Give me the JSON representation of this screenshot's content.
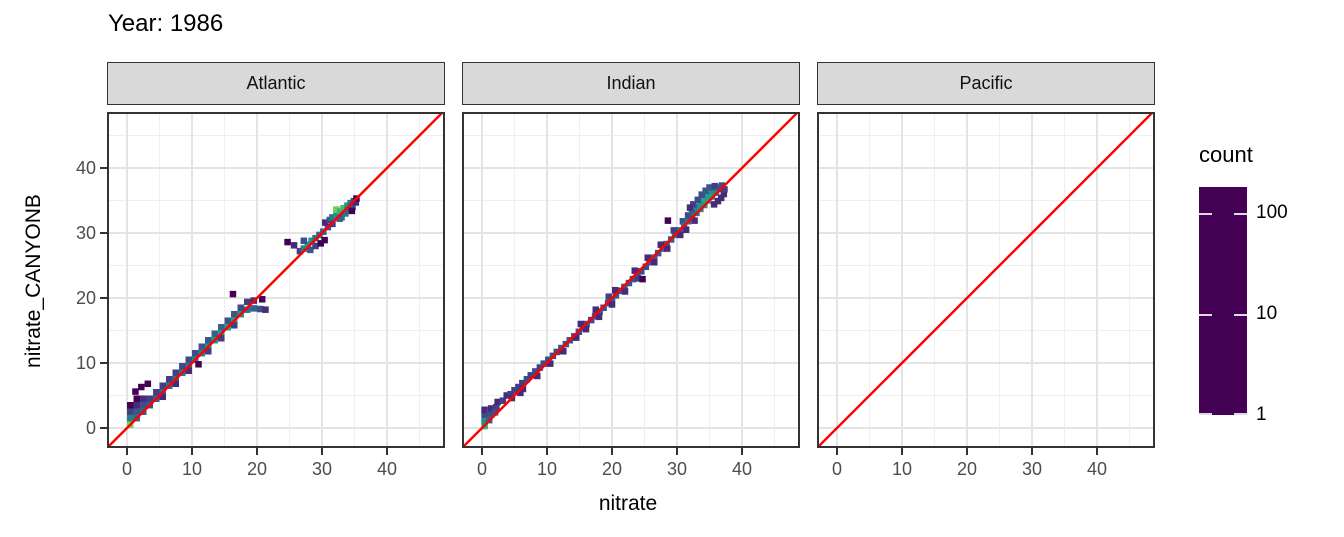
{
  "title": "Year: 1986",
  "axes": {
    "x_label": "nitrate",
    "y_label": "nitrate_CANYONB",
    "major_ticks": [
      0,
      10,
      20,
      30,
      40
    ],
    "minor_ticks": [
      5,
      15,
      25,
      35,
      45
    ]
  },
  "legend": {
    "title": "count",
    "ticks": [
      100,
      10,
      1
    ],
    "scale": "log10",
    "domain": [
      1,
      180
    ]
  },
  "colors": {
    "reference_line": "#ff0000",
    "panel_border": "#333333",
    "strip_fill": "#d9d9d9",
    "grid_major": "#e4e4e4",
    "grid_minor": "#efefef",
    "axis_text": "#4d4d4d",
    "viridis_stops": [
      [
        0.0,
        "#440154"
      ],
      [
        0.125,
        "#482878"
      ],
      [
        0.25,
        "#3e4a89"
      ],
      [
        0.375,
        "#31688e"
      ],
      [
        0.5,
        "#26828e"
      ],
      [
        0.625,
        "#1f9e89"
      ],
      [
        0.75,
        "#35b779"
      ],
      [
        0.875,
        "#6ece58"
      ],
      [
        1.0,
        "#fde725"
      ]
    ]
  },
  "chart_data": {
    "type": "heatmap",
    "title": "Year: 1986",
    "xlabel": "nitrate",
    "ylabel": "nitrate_CANYONB",
    "xlim": [
      -3.08,
      48.92
    ],
    "ylim": [
      -3.08,
      48.62
    ],
    "bin_size": 1,
    "grid": true,
    "reference_line": "y = x",
    "color_scale": {
      "name": "viridis",
      "title": "count",
      "type": "log10",
      "domain": [
        1,
        180
      ],
      "legend_ticks": [
        100,
        10,
        1
      ]
    },
    "facets": [
      {
        "name": "Atlantic",
        "bins": [
          [
            0.5,
            0.5,
            100
          ],
          [
            0.5,
            1.5,
            12
          ],
          [
            1.5,
            1.5,
            8
          ],
          [
            0.5,
            2.5,
            3
          ],
          [
            1.5,
            2.5,
            5
          ],
          [
            2.5,
            2.5,
            6
          ],
          [
            1.5,
            3.5,
            2
          ],
          [
            2.5,
            3.5,
            4
          ],
          [
            0.5,
            3.5,
            1
          ],
          [
            1.5,
            4.5,
            1
          ],
          [
            2.5,
            4.5,
            2
          ],
          [
            3.5,
            3.5,
            5
          ],
          [
            3.5,
            4.5,
            3
          ],
          [
            2.2,
            6.3,
            1
          ],
          [
            3.2,
            6.8,
            1
          ],
          [
            1.3,
            5.6,
            1
          ],
          [
            4.5,
            4.5,
            6
          ],
          [
            4.5,
            5.5,
            3
          ],
          [
            5.5,
            5.5,
            7
          ],
          [
            5.5,
            6.5,
            3
          ],
          [
            6.5,
            6.5,
            8
          ],
          [
            6.5,
            7.5,
            3
          ],
          [
            7.5,
            7.5,
            8
          ],
          [
            7.5,
            8.5,
            3
          ],
          [
            8.5,
            8.5,
            9
          ],
          [
            8.5,
            9.5,
            4
          ],
          [
            9.5,
            9.5,
            10
          ],
          [
            9.5,
            10.5,
            4
          ],
          [
            10.5,
            10.5,
            12
          ],
          [
            10.5,
            11.5,
            4
          ],
          [
            5.5,
            4.8,
            2
          ],
          [
            7.5,
            6.8,
            2
          ],
          [
            9.5,
            8.8,
            2
          ],
          [
            11.0,
            9.8,
            1
          ],
          [
            11.5,
            11.5,
            14
          ],
          [
            11.5,
            12.5,
            5
          ],
          [
            12.5,
            12.5,
            18
          ],
          [
            12.5,
            13.5,
            5
          ],
          [
            13.5,
            13.5,
            24
          ],
          [
            13.5,
            14.5,
            6
          ],
          [
            14.5,
            14.5,
            28
          ],
          [
            14.5,
            15.5,
            6
          ],
          [
            15.5,
            15.5,
            30
          ],
          [
            15.5,
            16.5,
            5
          ],
          [
            16.5,
            16.5,
            28
          ],
          [
            16.5,
            17.5,
            5
          ],
          [
            17.5,
            17.5,
            22
          ],
          [
            12.5,
            11.8,
            3
          ],
          [
            14.5,
            13.8,
            3
          ],
          [
            16.5,
            15.8,
            3
          ],
          [
            17.5,
            18.5,
            4
          ],
          [
            18.5,
            18.2,
            10
          ],
          [
            19.5,
            18.4,
            6
          ],
          [
            20.5,
            18.3,
            4
          ],
          [
            21.3,
            18.2,
            2
          ],
          [
            18.5,
            19.4,
            3
          ],
          [
            19.5,
            19.6,
            2
          ],
          [
            16.3,
            20.6,
            1
          ],
          [
            20.8,
            19.8,
            1
          ],
          [
            24.7,
            28.6,
            1
          ],
          [
            25.7,
            28.1,
            2
          ],
          [
            26.6,
            27.2,
            3
          ],
          [
            27.2,
            27.6,
            12
          ],
          [
            27.8,
            28.2,
            22
          ],
          [
            28.4,
            28.8,
            18
          ],
          [
            27.2,
            28.8,
            4
          ],
          [
            28.2,
            27.4,
            5
          ],
          [
            29.0,
            29.2,
            10
          ],
          [
            29.6,
            29.7,
            8
          ],
          [
            29.0,
            28.0,
            3
          ],
          [
            29.8,
            28.4,
            1
          ],
          [
            30.4,
            28.9,
            1
          ],
          [
            30.2,
            30.2,
            6
          ],
          [
            30.9,
            30.9,
            5
          ],
          [
            30.5,
            31.6,
            2
          ],
          [
            31.2,
            32.0,
            4
          ],
          [
            31.6,
            31.4,
            3
          ],
          [
            31.6,
            32.4,
            10
          ],
          [
            32.2,
            32.8,
            18
          ],
          [
            32.2,
            33.6,
            95
          ],
          [
            32.8,
            33.3,
            45
          ],
          [
            33.3,
            33.8,
            55
          ],
          [
            33.9,
            34.2,
            25
          ],
          [
            34.4,
            34.6,
            10
          ],
          [
            34.9,
            34.9,
            4
          ],
          [
            33.0,
            32.4,
            8
          ],
          [
            33.6,
            33.0,
            10
          ],
          [
            34.1,
            33.5,
            7
          ],
          [
            34.7,
            34.0,
            5
          ],
          [
            32.7,
            32.2,
            6
          ],
          [
            35.2,
            34.7,
            2
          ],
          [
            34.6,
            33.4,
            1
          ],
          [
            35.3,
            35.3,
            1
          ]
        ]
      },
      {
        "name": "Indian",
        "bins": [
          [
            0.4,
            0.3,
            40
          ],
          [
            0.4,
            1.0,
            18
          ],
          [
            0.4,
            2.0,
            4
          ],
          [
            0.4,
            2.8,
            2
          ],
          [
            1.2,
            2.2,
            4
          ],
          [
            1.4,
            3.0,
            2
          ],
          [
            2.2,
            3.2,
            3
          ],
          [
            2.4,
            4.0,
            2
          ],
          [
            3.2,
            4.2,
            3
          ],
          [
            1.1,
            1.2,
            6
          ],
          [
            2.0,
            2.4,
            4
          ],
          [
            3.8,
            5.0,
            2
          ],
          [
            4.4,
            5.2,
            3
          ],
          [
            5.0,
            5.8,
            3
          ],
          [
            5.6,
            6.3,
            3
          ],
          [
            6.2,
            6.9,
            3
          ],
          [
            6.9,
            7.5,
            4
          ],
          [
            7.5,
            8.1,
            3
          ],
          [
            8.2,
            8.7,
            4
          ],
          [
            8.9,
            9.3,
            3
          ],
          [
            9.5,
            9.9,
            4
          ],
          [
            10.2,
            10.5,
            4
          ],
          [
            10.9,
            11.1,
            4
          ],
          [
            11.5,
            11.7,
            4
          ],
          [
            12.2,
            12.3,
            5
          ],
          [
            12.9,
            12.9,
            5
          ],
          [
            13.5,
            13.5,
            5
          ],
          [
            14.2,
            14.1,
            4
          ],
          [
            14.9,
            14.8,
            4
          ],
          [
            6.3,
            6.0,
            2
          ],
          [
            8.5,
            8.0,
            2
          ],
          [
            10.5,
            9.9,
            2
          ],
          [
            12.5,
            11.8,
            2
          ],
          [
            14.5,
            13.9,
            2
          ],
          [
            4.6,
            4.6,
            2
          ],
          [
            5.9,
            5.4,
            2
          ],
          [
            15.5,
            15.4,
            5
          ],
          [
            16.1,
            16.0,
            5
          ],
          [
            16.8,
            16.6,
            4
          ],
          [
            17.4,
            17.2,
            5
          ],
          [
            18.1,
            17.9,
            5
          ],
          [
            18.7,
            18.5,
            4
          ],
          [
            19.4,
            19.2,
            5
          ],
          [
            20.0,
            19.8,
            5
          ],
          [
            20.6,
            20.4,
            5
          ],
          [
            21.3,
            21.1,
            5
          ],
          [
            21.9,
            21.7,
            5
          ],
          [
            22.6,
            22.3,
            5
          ],
          [
            23.2,
            22.9,
            5
          ],
          [
            23.9,
            23.5,
            4
          ],
          [
            24.5,
            24.1,
            4
          ],
          [
            16.0,
            15.2,
            2
          ],
          [
            18.0,
            17.1,
            2
          ],
          [
            20.0,
            19.0,
            2
          ],
          [
            22.0,
            21.0,
            2
          ],
          [
            24.0,
            23.0,
            3
          ],
          [
            24.7,
            22.9,
            1
          ],
          [
            19.5,
            20.2,
            3
          ],
          [
            20.5,
            21.2,
            2
          ],
          [
            17.5,
            18.2,
            2
          ],
          [
            23.5,
            24.2,
            2
          ],
          [
            15.2,
            16.0,
            2
          ],
          [
            25.2,
            24.8,
            4
          ],
          [
            25.8,
            25.5,
            5
          ],
          [
            26.5,
            26.2,
            5
          ],
          [
            27.1,
            26.9,
            5
          ],
          [
            27.8,
            27.6,
            6
          ],
          [
            28.4,
            28.3,
            6
          ],
          [
            29.1,
            29.0,
            6
          ],
          [
            29.7,
            29.7,
            7
          ],
          [
            30.4,
            30.4,
            7
          ],
          [
            25.5,
            26.2,
            2
          ],
          [
            27.5,
            28.2,
            2
          ],
          [
            29.5,
            30.4,
            3
          ],
          [
            26.5,
            25.5,
            2
          ],
          [
            28.5,
            27.6,
            2
          ],
          [
            30.5,
            29.7,
            2
          ],
          [
            28.6,
            31.9,
            1
          ],
          [
            30.9,
            31.8,
            4
          ],
          [
            31.1,
            31.1,
            8
          ],
          [
            31.7,
            31.8,
            9
          ],
          [
            32.3,
            32.4,
            10
          ],
          [
            33.0,
            33.1,
            12
          ],
          [
            31.7,
            32.7,
            4
          ],
          [
            32.3,
            33.3,
            6
          ],
          [
            33.0,
            34.0,
            14
          ],
          [
            33.6,
            33.7,
            18
          ],
          [
            33.6,
            34.6,
            20
          ],
          [
            34.2,
            34.3,
            22
          ],
          [
            34.2,
            35.2,
            28
          ],
          [
            34.8,
            35.0,
            30
          ],
          [
            34.8,
            35.8,
            25
          ],
          [
            35.4,
            35.6,
            28
          ],
          [
            35.4,
            36.4,
            20
          ],
          [
            36.0,
            36.2,
            15
          ],
          [
            36.0,
            37.0,
            10
          ],
          [
            36.6,
            36.8,
            8
          ],
          [
            32.5,
            34.4,
            3
          ],
          [
            33.2,
            35.1,
            4
          ],
          [
            33.8,
            35.9,
            4
          ],
          [
            34.4,
            36.5,
            5
          ],
          [
            35.0,
            37.0,
            5
          ],
          [
            35.8,
            37.2,
            3
          ],
          [
            32.0,
            33.9,
            2
          ],
          [
            36.9,
            37.3,
            4
          ],
          [
            35.7,
            34.4,
            2
          ],
          [
            36.3,
            34.9,
            2
          ],
          [
            36.8,
            35.4,
            2
          ],
          [
            37.2,
            36.0,
            2
          ],
          [
            37.3,
            36.7,
            3
          ],
          [
            31.4,
            30.5,
            2
          ],
          [
            32.7,
            31.9,
            2
          ]
        ]
      },
      {
        "name": "Pacific",
        "bins": []
      }
    ]
  }
}
